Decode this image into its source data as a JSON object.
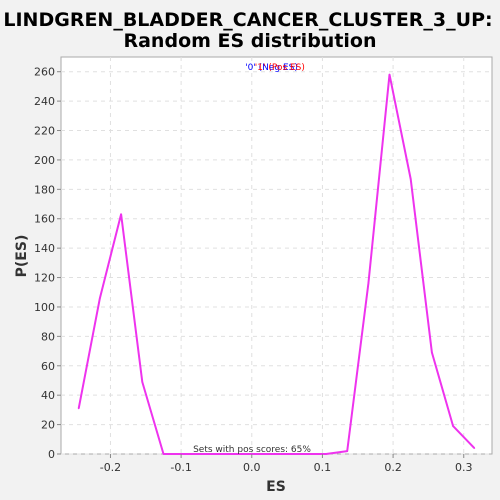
{
  "chart_data": {
    "type": "line",
    "title": [
      "LINDGREN_BLADDER_CANCER_CLUSTER_3_UP:",
      "Random ES distribution"
    ],
    "xlabel": "ES",
    "ylabel": "P(ES)",
    "xlim": [
      -0.27,
      0.34
    ],
    "ylim": [
      0,
      270
    ],
    "x_ticks": [
      -0.2,
      -0.1,
      0.0,
      0.1,
      0.2,
      0.3
    ],
    "x_tick_labels": [
      "-0.2",
      "-0.1",
      "0.0",
      "0.1",
      "0.2",
      "0.3"
    ],
    "y_ticks": [
      0,
      20,
      40,
      60,
      80,
      100,
      120,
      140,
      160,
      180,
      200,
      220,
      240,
      260
    ],
    "y_tick_labels": [
      "0",
      "20",
      "40",
      "60",
      "80",
      "100",
      "120",
      "140",
      "160",
      "180",
      "200",
      "220",
      "240",
      "260"
    ],
    "grid": true,
    "legend": {
      "position": "top-center",
      "entries": [
        {
          "label": "'0' (Neg ES)",
          "color": "#0000ff"
        },
        {
          "label": "'1' (Pos ES)",
          "color": "#ff0000"
        }
      ]
    },
    "annotation": "Sets with pos scores: 65%",
    "series": [
      {
        "color": "#ee33ee",
        "x": [
          -0.245,
          -0.215,
          -0.185,
          -0.155,
          -0.125,
          -0.095,
          -0.065,
          -0.035,
          -0.005,
          0.025,
          0.055,
          0.085,
          0.105,
          0.135,
          0.165,
          0.195,
          0.225,
          0.255,
          0.285,
          0.315
        ],
        "y": [
          31,
          106,
          163,
          49,
          0,
          0,
          0,
          0,
          0,
          0,
          0,
          0,
          0,
          2,
          116,
          258,
          187,
          69,
          19,
          4
        ]
      }
    ]
  }
}
